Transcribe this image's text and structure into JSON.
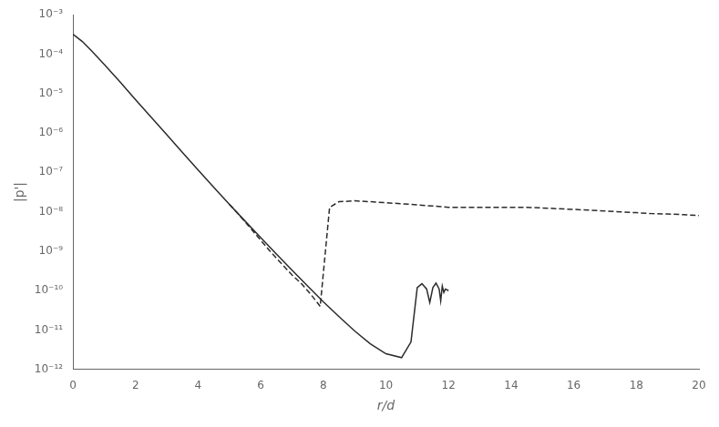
{
  "chart_data": {
    "type": "line",
    "xlabel": "r/d",
    "ylabel": "|p'|",
    "log": "y",
    "grid": false,
    "xlim": [
      0,
      20
    ],
    "xticks": [
      0,
      2,
      4,
      6,
      8,
      10,
      12,
      14,
      16,
      18,
      20
    ],
    "ylim": [
      1e-12,
      0.001
    ],
    "yticks": [
      {
        "value": 1e-12,
        "label": "10⁻¹²"
      },
      {
        "value": 1e-11,
        "label": "10⁻¹¹"
      },
      {
        "value": 1e-10,
        "label": "10⁻¹⁰"
      },
      {
        "value": 1e-09,
        "label": "10⁻⁹"
      },
      {
        "value": 1e-08,
        "label": "10⁻⁸"
      },
      {
        "value": 1e-07,
        "label": "10⁻⁷"
      },
      {
        "value": 1e-06,
        "label": "10⁻⁶"
      },
      {
        "value": 1e-05,
        "label": "10⁻⁵"
      },
      {
        "value": 0.0001,
        "label": "10⁻⁴"
      },
      {
        "value": 0.001,
        "label": "10⁻³"
      }
    ],
    "series": [
      {
        "color": "#2b2b2b",
        "line_style": "solid",
        "x": [
          0.0,
          0.3,
          0.6,
          1.0,
          1.5,
          2.0,
          2.5,
          3.0,
          3.5,
          4.0,
          4.5,
          5.0,
          5.5,
          6.0,
          6.5,
          7.0,
          7.5,
          8.0,
          8.5,
          9.0,
          9.5,
          10.0,
          10.5,
          10.8,
          11.0,
          11.15,
          11.3,
          11.4,
          11.5,
          11.6,
          11.7,
          11.75,
          11.8,
          11.85,
          11.9,
          12.0
        ],
        "values": [
          0.00032,
          0.00021,
          0.00012,
          5.5e-05,
          2e-05,
          7e-06,
          2.5e-06,
          9e-07,
          3.2e-07,
          1.15e-07,
          4.2e-08,
          1.55e-08,
          5.8e-09,
          2.2e-09,
          8.5e-10,
          3.3e-10,
          1.3e-10,
          5.2e-11,
          2.2e-11,
          9.5e-12,
          4.5e-12,
          2.5e-12,
          2e-12,
          5e-12,
          1.2e-10,
          1.5e-10,
          1.1e-10,
          5e-11,
          1.2e-10,
          1.55e-10,
          1.1e-10,
          5.5e-11,
          1.3e-10,
          9e-11,
          1.1e-10,
          1e-10
        ]
      },
      {
        "color": "#2b2b2b",
        "line_style": "dashed",
        "x": [
          5.0,
          5.3,
          5.6,
          6.0,
          6.3,
          6.7,
          7.0,
          7.3,
          7.6,
          7.9,
          8.2,
          8.5,
          9.0,
          9.5,
          10.0,
          10.5,
          11.0,
          11.5,
          12.0,
          12.5,
          13.0,
          13.5,
          14.0,
          14.5,
          15.0,
          15.5,
          16.0,
          16.5,
          17.0,
          17.5,
          18.0,
          18.5,
          19.0,
          19.5,
          20.0
        ],
        "values": [
          1.55e-08,
          8.5e-09,
          4.5e-09,
          1.9e-09,
          1e-09,
          4.5e-10,
          2.5e-10,
          1.5e-10,
          8e-11,
          4e-11,
          1.3e-08,
          1.8e-08,
          1.9e-08,
          1.8e-08,
          1.7e-08,
          1.6e-08,
          1.5e-08,
          1.4e-08,
          1.3e-08,
          1.3e-08,
          1.3e-08,
          1.3e-08,
          1.3e-08,
          1.3e-08,
          1.25e-08,
          1.2e-08,
          1.15e-08,
          1.1e-08,
          1.05e-08,
          1e-08,
          9.5e-09,
          9e-09,
          8.8e-09,
          8.5e-09,
          8e-09
        ]
      }
    ]
  }
}
